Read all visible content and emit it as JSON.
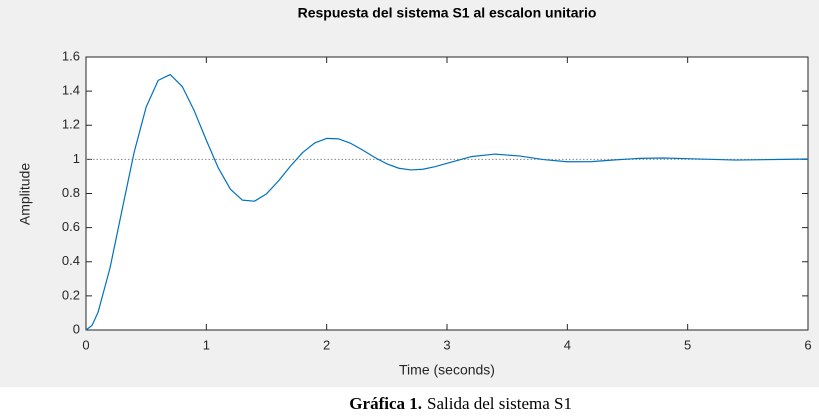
{
  "chart_data": {
    "type": "line",
    "title": "Respuesta del sistema S1 al escalon unitario",
    "xlabel": "Time (seconds)",
    "ylabel": "Amplitude",
    "x": [
      0,
      0.05,
      0.1,
      0.2,
      0.3,
      0.4,
      0.5,
      0.6,
      0.7,
      0.8,
      0.9,
      1.0,
      1.1,
      1.2,
      1.3,
      1.4,
      1.5,
      1.6,
      1.7,
      1.8,
      1.9,
      2.0,
      2.1,
      2.2,
      2.3,
      2.4,
      2.5,
      2.6,
      2.7,
      2.8,
      2.9,
      3.0,
      3.2,
      3.4,
      3.6,
      3.8,
      4.0,
      4.2,
      4.4,
      4.6,
      4.8,
      5.0,
      5.4,
      5.8,
      6.0
    ],
    "series": [
      {
        "color": "#0072bd",
        "values": [
          0,
          0.027,
          0.103,
          0.365,
          0.705,
          1.041,
          1.307,
          1.463,
          1.497,
          1.427,
          1.284,
          1.112,
          0.949,
          0.825,
          0.761,
          0.755,
          0.798,
          0.874,
          0.961,
          1.04,
          1.096,
          1.123,
          1.12,
          1.094,
          1.054,
          1.011,
          0.974,
          0.948,
          0.938,
          0.942,
          0.957,
          0.977,
          1.016,
          1.031,
          1.02,
          0.999,
          0.986,
          0.987,
          0.997,
          1.006,
          1.008,
          1.004,
          0.996,
          1.0,
          1.002
        ]
      }
    ],
    "reference_line": 1,
    "xlim": [
      0,
      6
    ],
    "xticks": [
      0,
      1,
      2,
      3,
      4,
      5,
      6
    ],
    "ylim": [
      0,
      1.6
    ],
    "yticks": [
      0,
      0.2,
      0.4,
      0.6,
      0.8,
      1,
      1.2,
      1.4,
      1.6
    ]
  },
  "caption": {
    "label": "Gráfica 1.",
    "text": "Salida del sistema S1"
  }
}
